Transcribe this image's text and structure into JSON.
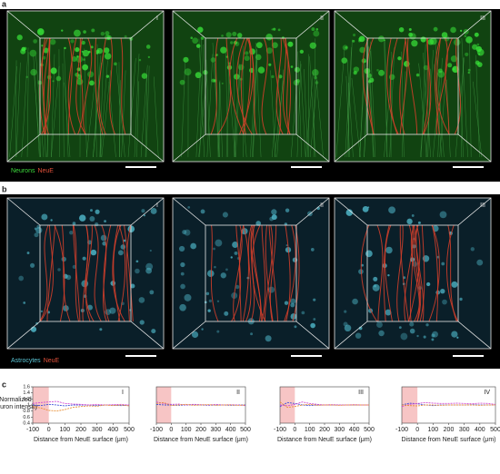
{
  "panel_a": {
    "label": "a",
    "subpanels": [
      "I",
      "II",
      "III"
    ],
    "legend": [
      "Neurons",
      "NeuE"
    ]
  },
  "panel_b": {
    "label": "b",
    "subpanels": [
      "I",
      "II",
      "III"
    ],
    "legend": [
      "Astrocytes",
      "NeuE"
    ]
  },
  "panel_c_label": "c",
  "chart_data": [
    {
      "type": "line",
      "title": "I",
      "ylabel": [
        "Normalized",
        "neuron intensity"
      ],
      "xlabel": "Distance from NeuE surface (μm)",
      "x": [
        -100,
        -50,
        0,
        50,
        100,
        150,
        200,
        250,
        300,
        350,
        400,
        450,
        500
      ],
      "series": [
        {
          "color": "#3b4fd8",
          "values": [
            1,
            0.98,
            1.02,
            1,
            0.97,
            1,
            1,
            1,
            0.98,
            1,
            1,
            0.98,
            1
          ]
        },
        {
          "color": "#d24bd2",
          "values": [
            1.05,
            1.08,
            1.1,
            1.12,
            1.05,
            1.03,
            1.02,
            1,
            1.02,
            1,
            1.01,
            1.02,
            1
          ]
        },
        {
          "color": "#e8913a",
          "values": [
            0.95,
            0.9,
            0.82,
            0.8,
            0.85,
            0.92,
            0.95,
            0.97,
            0.96,
            1,
            0.98,
            1,
            0.97
          ]
        }
      ],
      "xlim": [
        -100,
        500
      ],
      "ylim": [
        0.4,
        1.6
      ],
      "xticks": [
        -100,
        0,
        100,
        200,
        300,
        400,
        500
      ],
      "yticks": [
        0.4,
        0.6,
        0.8,
        1,
        1.2,
        1.4,
        1.6
      ],
      "shaded_x": [
        -100,
        0
      ],
      "shade_color": "#f7c5c5"
    },
    {
      "type": "line",
      "title": "II",
      "xlabel": "Distance from NeuE surface (μm)",
      "x": [
        -100,
        -50,
        0,
        50,
        100,
        150,
        200,
        250,
        300,
        350,
        400,
        450,
        500
      ],
      "series": [
        {
          "color": "#3b4fd8",
          "values": [
            1.02,
            1,
            1,
            0.99,
            1,
            1.01,
            1,
            0.99,
            1,
            1,
            0.99,
            1,
            1
          ]
        },
        {
          "color": "#d24bd2",
          "values": [
            1.1,
            1.05,
            1.02,
            1.03,
            1,
            1.02,
            1.01,
            1,
            1.02,
            1,
            1.01,
            1,
            0.98
          ]
        },
        {
          "color": "#e8913a",
          "values": [
            1.05,
            1.08,
            0.98,
            1,
            1.02,
            0.99,
            1,
            1.01,
            0.99,
            1,
            1,
            0.99,
            1
          ]
        }
      ],
      "xlim": [
        -100,
        500
      ],
      "ylim": [
        0.4,
        1.6
      ],
      "xticks": [
        -100,
        0,
        100,
        200,
        300,
        400,
        500
      ],
      "shaded_x": [
        -100,
        0
      ],
      "shade_color": "#f7c5c5"
    },
    {
      "type": "line",
      "title": "III",
      "xlabel": "Distance from NeuE surface (μm)",
      "x": [
        -100,
        -50,
        0,
        50,
        100,
        150,
        200,
        250,
        300,
        350,
        400,
        450,
        500
      ],
      "series": [
        {
          "color": "#3b4fd8",
          "values": [
            0.95,
            1.08,
            1.05,
            1,
            0.98,
            1,
            1,
            1,
            1,
            1,
            1,
            1,
            1
          ]
        },
        {
          "color": "#d24bd2",
          "values": [
            1,
            0.97,
            1.02,
            1.1,
            1.05,
            1.02,
            1,
            1.01,
            1,
            1,
            1.01,
            1,
            1
          ]
        },
        {
          "color": "#e8913a",
          "values": [
            1.1,
            0.92,
            0.95,
            1,
            1.02,
            0.99,
            1,
            1,
            0.99,
            1,
            1,
            1,
            1
          ]
        }
      ],
      "xlim": [
        -100,
        500
      ],
      "ylim": [
        0.4,
        1.6
      ],
      "xticks": [
        -100,
        0,
        100,
        200,
        300,
        400,
        500
      ],
      "shaded_x": [
        -100,
        0
      ],
      "shade_color": "#f7c5c5"
    },
    {
      "type": "line",
      "title": "IV",
      "xlabel": "Distance from NeuE surface (μm)",
      "x": [
        -100,
        -50,
        0,
        50,
        100,
        150,
        200,
        250,
        300,
        350,
        400,
        450,
        500
      ],
      "series": [
        {
          "color": "#3b4fd8",
          "values": [
            1,
            1.06,
            1.04,
            1,
            0.98,
            1,
            1,
            1,
            1,
            1.01,
            1,
            1,
            1
          ]
        },
        {
          "color": "#d24bd2",
          "values": [
            0.95,
            1.02,
            1.05,
            1.08,
            1.06,
            1.05,
            1.05,
            1.06,
            1.05,
            1.04,
            1.06,
            1.05,
            1.02
          ]
        },
        {
          "color": "#e8913a",
          "values": [
            1,
            0.98,
            0.97,
            1,
            1,
            0.99,
            1,
            1,
            1,
            1,
            0.99,
            1,
            1
          ]
        }
      ],
      "xlim": [
        -100,
        500
      ],
      "ylim": [
        0.4,
        1.6
      ],
      "xticks": [
        -100,
        0,
        100,
        200,
        300,
        400,
        500
      ],
      "shaded_x": [
        -100,
        0
      ],
      "shade_color": "#f7c5c5"
    }
  ]
}
